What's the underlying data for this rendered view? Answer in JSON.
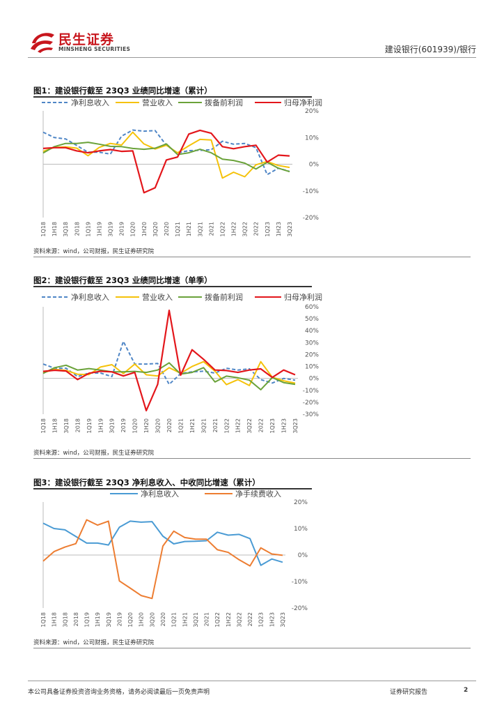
{
  "header": {
    "brand_cn": "民生证券",
    "brand_en": "MINSHENG SECURITIES",
    "right_text": "建设银行(601939)/银行"
  },
  "footer": {
    "disclaimer": "本公司具备证券投资咨询业务资格，请务必阅读最后一页免责声明",
    "report_type": "证券研究报告",
    "page": "2"
  },
  "figures": [
    {
      "title": "图1：建设银行截至 23Q3 业绩同比增速（累计）",
      "source": "资料来源：wind，公司财报，民生证券研究院"
    },
    {
      "title": "图2：建设银行截至 23Q3 业绩同比增速（单季）",
      "source": "资料来源：wind，公司财报，民生证券研究院"
    },
    {
      "title": "图3：建设银行截至 23Q3 净利息收入、中收同比增速（累计）",
      "source": "资料来源：wind，公司财报，民生证券研究院"
    }
  ],
  "colors": {
    "brand": "#c8161d",
    "blue_dash": "#4f86c6",
    "yellow": "#f5c20a",
    "green": "#6aa23a",
    "red": "#e3161b",
    "blue": "#4a9bd4",
    "orange": "#ed7d31"
  },
  "chart_data": [
    {
      "type": "line",
      "categories": [
        "1Q18",
        "1H18",
        "3Q18",
        "2018",
        "1Q19",
        "1H19",
        "3Q19",
        "2019",
        "1Q20",
        "1H20",
        "3Q20",
        "2020",
        "1Q21",
        "1H21",
        "3Q21",
        "2021",
        "1Q22",
        "1H22",
        "3Q22",
        "2022",
        "1Q23",
        "1H23",
        "3Q23"
      ],
      "ylim": [
        -20,
        20
      ],
      "yticks": [
        "20%",
        "10%",
        "0%",
        "-10%",
        "-20%"
      ],
      "series": [
        {
          "name": "净利息收入",
          "style": "dashed",
          "color": "#4f86c6",
          "values": [
            12,
            10,
            9.5,
            7,
            4.5,
            4.5,
            3.8,
            10.5,
            12.8,
            12.4,
            12.6,
            7.1,
            4.2,
            5.1,
            5.2,
            5.4,
            8.6,
            7.5,
            7.8,
            6.2,
            -3.9,
            -1.5,
            -2.7
          ]
        },
        {
          "name": "营业收入",
          "style": "solid",
          "color": "#f5c20a",
          "values": [
            4.8,
            6.3,
            6.5,
            6.0,
            3.2,
            6.3,
            7.8,
            7.2,
            12.0,
            7.6,
            5.7,
            7.1,
            4.3,
            6.9,
            9.3,
            9.1,
            -5.2,
            -3.0,
            -4.7,
            -0.2,
            1.0,
            -0.5,
            -1.2
          ]
        },
        {
          "name": "拨备前利润",
          "style": "solid",
          "color": "#6aa23a",
          "values": [
            4.2,
            6.6,
            7.8,
            7.8,
            8.2,
            7.5,
            6.7,
            6.6,
            5.9,
            5.6,
            6.0,
            7.6,
            3.6,
            4.3,
            5.6,
            4.3,
            1.9,
            1.4,
            0.4,
            -1.8,
            0.7,
            -1.5,
            -2.8
          ]
        },
        {
          "name": "归母净利润",
          "style": "solid",
          "color": "#e3161b",
          "values": [
            5.9,
            6.2,
            6.2,
            5.0,
            4.3,
            5.0,
            5.5,
            4.8,
            5.0,
            -10.7,
            -8.8,
            1.6,
            2.7,
            11.3,
            12.7,
            11.6,
            6.6,
            5.8,
            6.6,
            7.1,
            0.8,
            3.4,
            3.1
          ]
        }
      ]
    },
    {
      "type": "line",
      "categories": [
        "1Q18",
        "1H18",
        "3Q18",
        "2018",
        "1Q19",
        "1H19",
        "3Q19",
        "2019",
        "1Q20",
        "1H20",
        "3Q20",
        "2020",
        "1Q21",
        "1H21",
        "3Q21",
        "2021",
        "1Q22",
        "1H22",
        "3Q22",
        "2022",
        "1Q23",
        "1H23",
        "3Q23"
      ],
      "ylim": [
        -30,
        60
      ],
      "yticks": [
        "60%",
        "50%",
        "40%",
        "30%",
        "20%",
        "10%",
        "0%",
        "-10%",
        "-20%",
        "-30%"
      ],
      "series": [
        {
          "name": "净利息收入",
          "style": "dashed",
          "color": "#4f86c6",
          "values": [
            12,
            8.5,
            8.5,
            1.5,
            4.5,
            4.5,
            1.5,
            31,
            12,
            12,
            12.5,
            -5,
            4,
            5.5,
            6,
            4.5,
            8.5,
            7,
            8,
            -1,
            -3.9,
            0,
            -1.5
          ]
        },
        {
          "name": "营业收入",
          "style": "solid",
          "color": "#f5c20a",
          "values": [
            4.8,
            7.5,
            6.7,
            3.5,
            3.2,
            9.5,
            11.5,
            4,
            12,
            3,
            2,
            9,
            4.3,
            10,
            14,
            6,
            -5.2,
            -1,
            -6,
            14,
            1.0,
            -2,
            -4
          ]
        },
        {
          "name": "拨备前利润",
          "style": "solid",
          "color": "#6aa23a",
          "values": [
            4.2,
            9,
            11,
            7,
            8.2,
            7,
            5.5,
            5.5,
            5.9,
            5,
            7,
            13,
            3.6,
            5,
            9,
            -3,
            1.9,
            0.5,
            -1.5,
            -9.5,
            0.7,
            -3.5,
            -5
          ]
        },
        {
          "name": "归母净利润",
          "style": "solid",
          "color": "#e3161b",
          "values": [
            5.9,
            6.8,
            6.2,
            -1,
            4.3,
            6,
            5.5,
            2,
            5.0,
            -27,
            -5,
            57,
            2.7,
            24,
            16,
            7,
            6.6,
            5,
            7,
            8,
            0.8,
            7,
            3
          ]
        }
      ]
    },
    {
      "type": "line",
      "categories": [
        "1Q18",
        "1H18",
        "3Q18",
        "2018",
        "1Q19",
        "1H19",
        "3Q19",
        "2019",
        "1Q20",
        "1H20",
        "3Q20",
        "2020",
        "1Q21",
        "1H21",
        "3Q21",
        "2021",
        "1Q22",
        "1H22",
        "3Q22",
        "2022",
        "1Q23",
        "1H23",
        "3Q23"
      ],
      "ylim": [
        -20,
        20
      ],
      "yticks": [
        "20%",
        "10%",
        "0%",
        "-10%",
        "-20%"
      ],
      "series": [
        {
          "name": "净利息收入",
          "style": "solid",
          "color": "#4a9bd4",
          "values": [
            12,
            10,
            9.5,
            7,
            4.5,
            4.5,
            3.8,
            10.5,
            12.8,
            12.4,
            12.6,
            7.1,
            4.2,
            5.1,
            5.2,
            5.4,
            8.6,
            7.5,
            7.8,
            6.2,
            -3.9,
            -1.5,
            -2.7
          ]
        },
        {
          "name": "净手续费收入",
          "style": "solid",
          "color": "#ed7d31",
          "values": [
            -2.3,
            1.3,
            3,
            4.3,
            13.3,
            11.3,
            12.8,
            -9.8,
            -12.5,
            -15.3,
            -16.4,
            3.4,
            9.0,
            6.6,
            6.0,
            6.0,
            2.0,
            1.0,
            -1.8,
            -4.1,
            2.7,
            0.4,
            -0.1
          ]
        }
      ]
    }
  ]
}
